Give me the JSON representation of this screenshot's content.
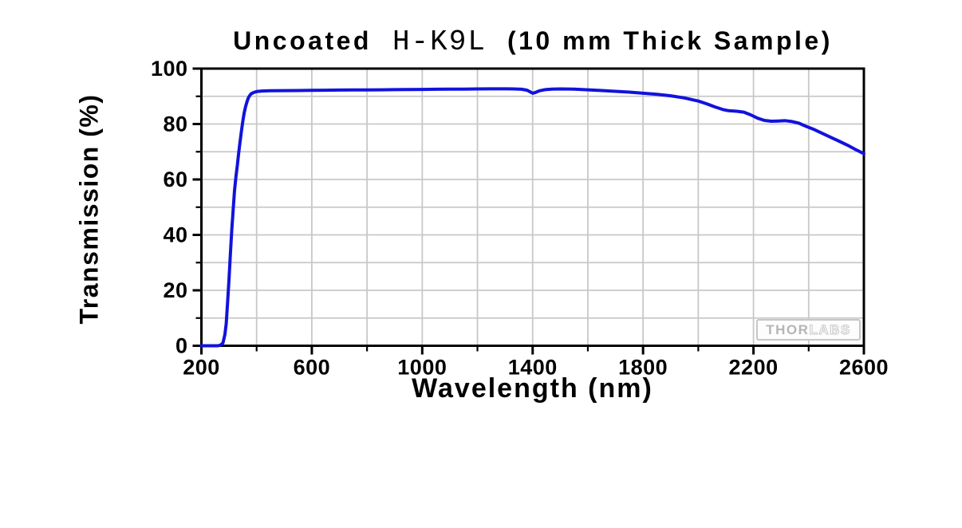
{
  "chart": {
    "title": {
      "part1": "Uncoated",
      "part2": "H-K9L",
      "part3": "(10 mm Thick Sample)"
    },
    "x_axis": {
      "label": "Wavelength (nm)",
      "major_ticks": [
        200,
        600,
        1000,
        1400,
        1800,
        2200,
        2600
      ],
      "minor_ticks": [
        400,
        800,
        1200,
        1600,
        2000,
        2400
      ],
      "grid_step": 200
    },
    "y_axis": {
      "label": "Transmission (%)",
      "major_ticks": [
        0,
        20,
        40,
        60,
        80,
        100
      ],
      "minor_ticks": [
        10,
        30,
        50,
        70,
        90
      ],
      "grid_step": 10
    },
    "watermark": {
      "solid": "THOR",
      "outline": "LABS"
    },
    "colors": {
      "line": "#1212dd",
      "grid": "#c8c8c8",
      "axis": "#000000",
      "watermark": "#c6c6c6"
    }
  },
  "chart_data": {
    "type": "line",
    "title": "Uncoated H-K9L (10 mm Thick Sample)",
    "xlabel": "Wavelength (nm)",
    "ylabel": "Transmission (%)",
    "xlim": [
      200,
      2600
    ],
    "ylim": [
      0,
      100
    ],
    "grid": true,
    "legend": false,
    "series": [
      {
        "name": "Transmission of 10 mm thick uncoated H-K9L",
        "points": [
          [
            200,
            0
          ],
          [
            240,
            0
          ],
          [
            260,
            0
          ],
          [
            270,
            0.3
          ],
          [
            278,
            1
          ],
          [
            285,
            4
          ],
          [
            290,
            8
          ],
          [
            295,
            16
          ],
          [
            300,
            24
          ],
          [
            305,
            33
          ],
          [
            310,
            42
          ],
          [
            315,
            49
          ],
          [
            320,
            56
          ],
          [
            325,
            61
          ],
          [
            330,
            65
          ],
          [
            335,
            69.5
          ],
          [
            340,
            73.5
          ],
          [
            345,
            77.5
          ],
          [
            350,
            81
          ],
          [
            355,
            84
          ],
          [
            360,
            86.3
          ],
          [
            365,
            88
          ],
          [
            370,
            89.4
          ],
          [
            375,
            90.3
          ],
          [
            380,
            90.9
          ],
          [
            390,
            91.4
          ],
          [
            400,
            91.7
          ],
          [
            420,
            91.9
          ],
          [
            450,
            92.0
          ],
          [
            500,
            92.05
          ],
          [
            550,
            92.1
          ],
          [
            600,
            92.15
          ],
          [
            650,
            92.2
          ],
          [
            700,
            92.25
          ],
          [
            750,
            92.3
          ],
          [
            800,
            92.3
          ],
          [
            850,
            92.35
          ],
          [
            900,
            92.4
          ],
          [
            950,
            92.45
          ],
          [
            1000,
            92.5
          ],
          [
            1050,
            92.55
          ],
          [
            1100,
            92.6
          ],
          [
            1150,
            92.6
          ],
          [
            1200,
            92.65
          ],
          [
            1250,
            92.7
          ],
          [
            1300,
            92.7
          ],
          [
            1330,
            92.65
          ],
          [
            1360,
            92.55
          ],
          [
            1380,
            92.2
          ],
          [
            1400,
            91.1
          ],
          [
            1410,
            91.4
          ],
          [
            1425,
            92.0
          ],
          [
            1445,
            92.4
          ],
          [
            1470,
            92.6
          ],
          [
            1500,
            92.65
          ],
          [
            1550,
            92.6
          ],
          [
            1600,
            92.35
          ],
          [
            1650,
            92.1
          ],
          [
            1700,
            91.8
          ],
          [
            1750,
            91.5
          ],
          [
            1800,
            91.1
          ],
          [
            1850,
            90.7
          ],
          [
            1900,
            90.2
          ],
          [
            1950,
            89.4
          ],
          [
            2000,
            88.3
          ],
          [
            2030,
            87.3
          ],
          [
            2060,
            86.2
          ],
          [
            2090,
            85.2
          ],
          [
            2110,
            84.8
          ],
          [
            2140,
            84.6
          ],
          [
            2165,
            84.3
          ],
          [
            2190,
            83.3
          ],
          [
            2215,
            82.1
          ],
          [
            2240,
            81.3
          ],
          [
            2265,
            81.0
          ],
          [
            2290,
            81.1
          ],
          [
            2315,
            81.2
          ],
          [
            2340,
            80.9
          ],
          [
            2365,
            80.3
          ],
          [
            2390,
            79.2
          ],
          [
            2420,
            78.0
          ],
          [
            2450,
            76.6
          ],
          [
            2480,
            75.2
          ],
          [
            2510,
            73.8
          ],
          [
            2540,
            72.4
          ],
          [
            2570,
            70.8
          ],
          [
            2600,
            69.3
          ]
        ]
      }
    ]
  }
}
